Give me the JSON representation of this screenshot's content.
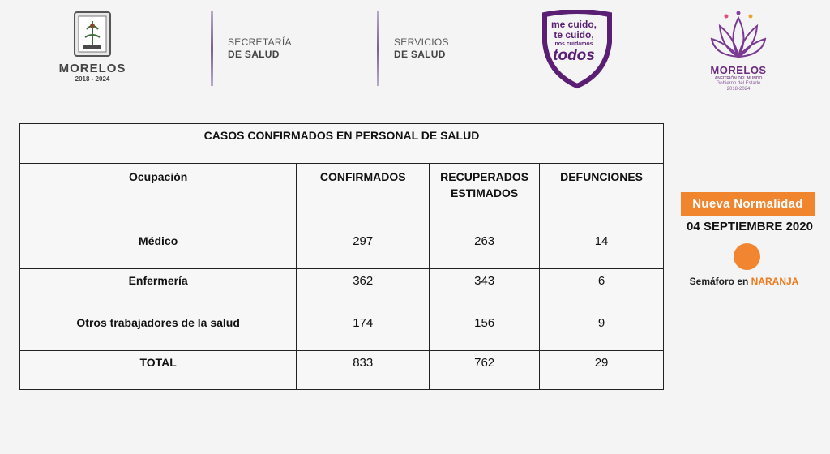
{
  "header": {
    "crest": {
      "title": "MORELOS",
      "years": "2018 - 2024"
    },
    "dept1": {
      "line1": "SECRETARÍA",
      "line2": "DE SALUD"
    },
    "dept2": {
      "line1": "SERVICIOS",
      "line2": "DE SALUD"
    },
    "campaign": {
      "line1": "me cuido,",
      "line2": "te cuido,",
      "line3": "nos cuidamos",
      "line4": "todos"
    },
    "morelos_logo": {
      "title": "MORELOS",
      "subtitle": "ANFITRIÓN DEL MUNDO",
      "gov_line1": "Gobierno del Estado",
      "gov_line2": "2018-2024"
    }
  },
  "table": {
    "title": "CASOS CONFIRMADOS EN PERSONAL DE SALUD",
    "headers": [
      "Ocupación",
      "CONFIRMADOS",
      "RECUPERADOS ESTIMADOS",
      "DEFUNCIONES"
    ],
    "rows": [
      {
        "ocupacion": "Médico",
        "confirmados": "297",
        "recuperados": "263",
        "defunciones": "14"
      },
      {
        "ocupacion": "Enfermería",
        "confirmados": "362",
        "recuperados": "343",
        "defunciones": "6"
      },
      {
        "ocupacion": "Otros trabajadores de la salud",
        "confirmados": "174",
        "recuperados": "156",
        "defunciones": "9"
      },
      {
        "ocupacion": "TOTAL",
        "confirmados": "833",
        "recuperados": "762",
        "defunciones": "29"
      }
    ]
  },
  "side_panel": {
    "badge": "Nueva Normalidad",
    "date": "04 SEPTIEMBRE 2020",
    "semaforo_prefix": "Semáforo en ",
    "semaforo_color_word": "NARANJA",
    "colors": {
      "accent": "#f0852e",
      "purple": "#5a1f72"
    }
  }
}
